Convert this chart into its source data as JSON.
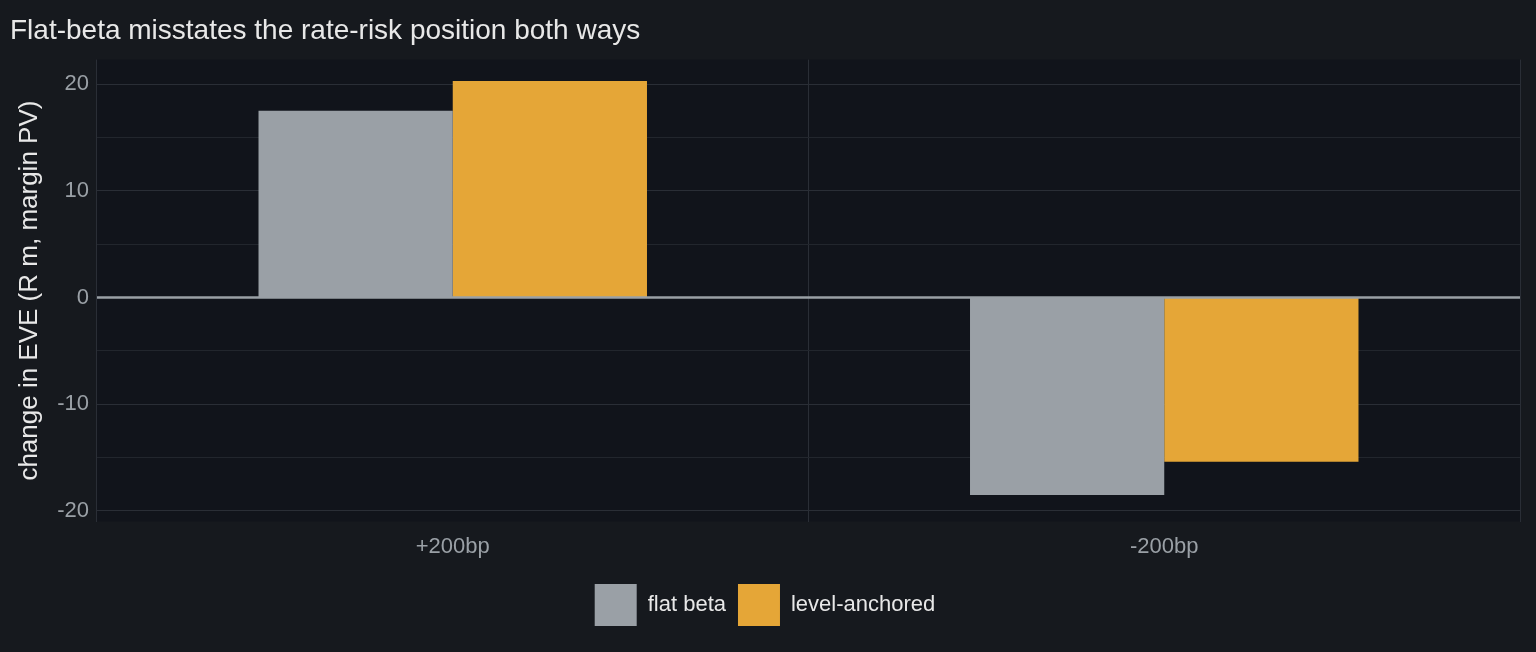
{
  "chart_data": {
    "type": "bar",
    "title": "Flat-beta misstates the rate-risk position both ways",
    "ylabel": "change in EVE (R m, margin PV)",
    "categories": [
      "+200bp",
      "-200bp"
    ],
    "series": [
      {
        "name": "flat beta",
        "color": "#9aa0a6",
        "values": [
          17.5,
          -18.5
        ]
      },
      {
        "name": "level-anchored",
        "color": "#e5a637",
        "values": [
          20.3,
          -15.4
        ]
      }
    ],
    "ylim": [
      -21,
      22.3
    ],
    "yticks": [
      -20,
      {
        "value": -15,
        "label": null
      },
      -10,
      {
        "value": -5,
        "label": null
      },
      0,
      {
        "value": 5,
        "label": null
      },
      10,
      {
        "value": 15,
        "label": null
      },
      20
    ],
    "ref_lines": [
      {
        "axis": "y",
        "value": 0,
        "color": "#9aa0a6"
      }
    ],
    "grid": true,
    "legend": "bottom"
  }
}
